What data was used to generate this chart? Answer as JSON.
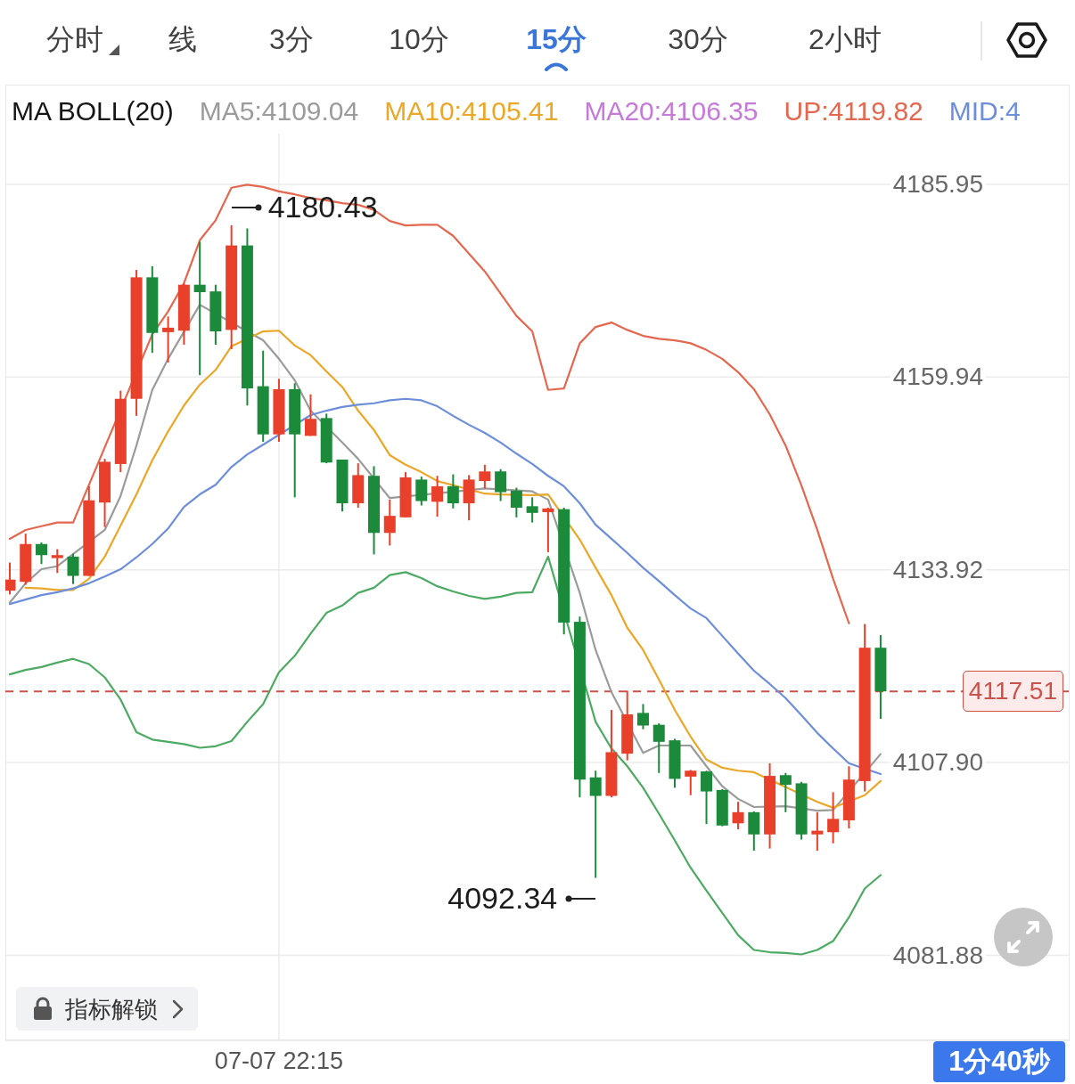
{
  "chart_data": {
    "type": "candlestick",
    "legend_title": "MA BOLL(20)",
    "categories": [
      null,
      null,
      null,
      null,
      null,
      null,
      null,
      null,
      null,
      null,
      null,
      null,
      null,
      null,
      null,
      null,
      null,
      "07-07 22:15",
      null,
      null,
      null,
      null,
      null,
      null,
      null,
      null,
      null,
      null,
      null,
      null,
      null,
      null,
      null,
      null,
      null,
      null,
      null,
      null,
      null,
      null,
      null,
      null,
      null,
      null,
      null,
      null,
      null,
      null,
      null,
      null,
      null,
      null,
      null,
      null,
      null,
      null
    ],
    "ohlc": [
      [
        4131.1,
        4134.9,
        4130.6,
        4132.6
      ],
      [
        4132.3,
        4138.8,
        4131.9,
        4137.4
      ],
      [
        4137.4,
        4137.6,
        4134.7,
        4135.9
      ],
      [
        4135.5,
        4136.7,
        4133.5,
        4135.9
      ],
      [
        4135.7,
        4136.1,
        4132.0,
        4133.1
      ],
      [
        4133.1,
        4145.2,
        4133.1,
        4143.3
      ],
      [
        4143.0,
        4148.9,
        4139.7,
        4148.5
      ],
      [
        4148.2,
        4158.1,
        4147.1,
        4157.0
      ],
      [
        4157.0,
        4174.4,
        4154.7,
        4173.4
      ],
      [
        4173.4,
        4174.9,
        4163.2,
        4165.9
      ],
      [
        4166.0,
        4168.1,
        4161.9,
        4166.6
      ],
      [
        4166.2,
        4172.6,
        4164.3,
        4172.4
      ],
      [
        4172.4,
        4178.2,
        4160.2,
        4171.4
      ],
      [
        4171.5,
        4172.4,
        4164.3,
        4166.1
      ],
      [
        4166.3,
        4180.43,
        4163.7,
        4177.7
      ],
      [
        4177.7,
        4180.0,
        4156.1,
        4158.4
      ],
      [
        4158.7,
        4163.5,
        4151.2,
        4152.2
      ],
      [
        4152.2,
        4159.7,
        4151.2,
        4158.3
      ],
      [
        4158.3,
        4159.1,
        4143.7,
        4152.2
      ],
      [
        4152.0,
        4157.6,
        4152.0,
        4154.3
      ],
      [
        4154.4,
        4155.0,
        4148.3,
        4148.4
      ],
      [
        4148.8,
        4148.8,
        4141.8,
        4142.9
      ],
      [
        4142.9,
        4148.3,
        4142.3,
        4146.7
      ],
      [
        4146.6,
        4147.9,
        4136.0,
        4138.9
      ],
      [
        4138.9,
        4143.4,
        4137.2,
        4141.2
      ],
      [
        4141.0,
        4147.1,
        4141.0,
        4146.4
      ],
      [
        4146.1,
        4146.5,
        4142.6,
        4143.2
      ],
      [
        4143.1,
        4146.6,
        4141.1,
        4145.2
      ],
      [
        4145.2,
        4146.8,
        4142.2,
        4142.9
      ],
      [
        4142.9,
        4146.7,
        4140.6,
        4146.1
      ],
      [
        4145.9,
        4148.1,
        4144.9,
        4147.2
      ],
      [
        4147.2,
        4147.5,
        4143.2,
        4144.4
      ],
      [
        4144.6,
        4145.0,
        4141.0,
        4142.3
      ],
      [
        4142.5,
        4143.7,
        4140.3,
        4141.6
      ],
      [
        4141.7,
        4142.3,
        4136.3,
        4142.2
      ],
      [
        4142.1,
        4142.3,
        4125.2,
        4126.8
      ],
      [
        4126.9,
        4127.6,
        4103.2,
        4105.6
      ],
      [
        4105.9,
        4106.8,
        4092.34,
        4103.4
      ],
      [
        4103.4,
        4115.0,
        4103.2,
        4109.3
      ],
      [
        4109.1,
        4117.6,
        4108.2,
        4114.4
      ],
      [
        4114.6,
        4115.8,
        4112.4,
        4112.9
      ],
      [
        4113.0,
        4113.2,
        4106.5,
        4110.7
      ],
      [
        4110.9,
        4111.1,
        4104.5,
        4105.7
      ],
      [
        4106.0,
        4106.9,
        4103.5,
        4106.8
      ],
      [
        4106.7,
        4106.8,
        4099.6,
        4104.0
      ],
      [
        4104.2,
        4104.3,
        4099.3,
        4099.4
      ],
      [
        4099.7,
        4102.6,
        4098.9,
        4101.2
      ],
      [
        4101.2,
        4101.3,
        4096.0,
        4098.2
      ],
      [
        4098.2,
        4107.8,
        4096.3,
        4106.1
      ],
      [
        4106.2,
        4106.5,
        4101.2,
        4104.9
      ],
      [
        4105.1,
        4105.3,
        4097.5,
        4098.2
      ],
      [
        4098.2,
        4101.2,
        4096.0,
        4098.7
      ],
      [
        4098.5,
        4103.9,
        4097.0,
        4100.3
      ],
      [
        4100.1,
        4107.4,
        4099.0,
        4105.6
      ],
      [
        4105.4,
        4126.6,
        4104.0,
        4123.4
      ],
      [
        4123.4,
        4125.1,
        4113.8,
        4117.51
      ]
    ],
    "colors": [
      "#e8402b",
      "#e8402b",
      "#1b8a3a",
      "#e8402b",
      "#1b8a3a",
      "#e8402b",
      "#e8402b",
      "#e8402b",
      "#e8402b",
      "#1b8a3a",
      "#e8402b",
      "#e8402b",
      "#1b8a3a",
      "#1b8a3a",
      "#e8402b",
      "#1b8a3a",
      "#1b8a3a",
      "#e8402b",
      "#1b8a3a",
      "#e8402b",
      "#1b8a3a",
      "#1b8a3a",
      "#e8402b",
      "#1b8a3a",
      "#e8402b",
      "#e8402b",
      "#1b8a3a",
      "#e8402b",
      "#1b8a3a",
      "#e8402b",
      "#e8402b",
      "#1b8a3a",
      "#1b8a3a",
      "#1b8a3a",
      "#e8402b",
      "#1b8a3a",
      "#1b8a3a",
      "#1b8a3a",
      "#e8402b",
      "#e8402b",
      "#1b8a3a",
      "#1b8a3a",
      "#1b8a3a",
      "#e8402b",
      "#1b8a3a",
      "#1b8a3a",
      "#e8402b",
      "#1b8a3a",
      "#e8402b",
      "#1b8a3a",
      "#1b8a3a",
      "#e8402b",
      "#e8402b",
      "#e8402b",
      "#e8402b",
      "#1b8a3a"
    ],
    "series": [
      {
        "name": "MA5:4109.04",
        "type": "line",
        "color": "#9b9b9b",
        "values": [
          4129.5,
          4132.1,
          4134.0,
          4134.4,
          null,
          null,
          4139.3,
          4143.9,
          4150.7,
          4158.2,
          4162.4,
          null,
          4169.7,
          null,
          null,
          null,
          4164.9,
          4162.4,
          4159.5,
          4155.4,
          null,
          4151.1,
          4148.9,
          null,
          4143.6,
          null,
          null,
          null,
          null,
          null,
          4144.9,
          null,
          null,
          4144.5,
          4143.4,
          null,
          4130.8,
          4123.1,
          4117.4,
          null,
          4109.2,
          4110.2,
          null,
          4110.2,
          4107.4,
          4104.7,
          4103.0,
          4101.9,
          null,
          4102.0,
          null,
          4101.4,
          4101.5,
          null,
          null,
          4109.04
        ]
      },
      {
        "name": "MA10:4105.41",
        "type": "line",
        "color": "#eaa728",
        "values": [
          null,
          4131.5,
          4131.4,
          4131.2,
          4131.2,
          4132.7,
          4135.7,
          4139.9,
          4144.1,
          4148.7,
          4152.6,
          4156.1,
          4158.9,
          4160.9,
          4164.1,
          null,
          4166.1,
          4166.2,
          4164.2,
          4162.9,
          4160.7,
          4158.6,
          4155.4,
          4152.8,
          4149.4,
          4148.1,
          4147.1,
          4145.9,
          null,
          null,
          4144.2,
          4144.1,
          null,
          4144.0,
          4144.1,
          null,
          4138.0,
          4134.2,
          4130.5,
          4126.1,
          4123.1,
          4119.1,
          4115.0,
          4111.4,
          4108.3,
          4107.2,
          4106.8,
          4106.6,
          null,
          null,
          null,
          4102.6,
          4101.8,
          null,
          4103.5,
          4105.41
        ]
      },
      {
        "name": "MA20:4106.35",
        "type": "line",
        "color": "#c57ad9",
        "values": [
          null,
          null,
          null,
          null,
          null,
          null,
          null,
          null,
          null,
          null,
          null,
          null,
          null,
          null,
          null,
          null,
          null,
          null,
          null,
          null,
          null,
          null,
          null,
          null,
          null,
          null,
          null,
          null,
          null,
          null,
          null,
          null,
          null,
          null,
          null,
          null,
          null,
          null,
          null,
          null,
          null,
          null,
          null,
          null,
          null,
          null,
          null,
          null,
          null,
          null,
          null,
          null,
          null,
          null,
          null,
          null
        ]
      },
      {
        "name": "UP:4119.82",
        "type": "line",
        "color": "#e4674f",
        "values": [
          4138.1,
          4139.3,
          4139.8,
          4140.3,
          4140.3,
          null,
          null,
          null,
          null,
          4165.7,
          4168.8,
          4172.6,
          4178.4,
          4181.1,
          4185.5,
          4185.9,
          4185.6,
          4185.0,
          4184.6,
          4184.1,
          4183.8,
          4183.4,
          4183.2,
          4182.5,
          4181.0,
          4180.4,
          4180.5,
          4180.5,
          4179.0,
          4176.6,
          4174.2,
          4171.2,
          4168.2,
          4166.1,
          4158.2,
          4158.4,
          4164.5,
          4166.7,
          4167.3,
          4166.3,
          4165.5,
          4165.1,
          4164.9,
          4164.5,
          4163.6,
          4162.4,
          4160.6,
          4158.3,
          4154.9,
          4150.7,
          4145.3,
          4139.3,
          4132.7,
          4126.7,
          null,
          null
        ]
      },
      {
        "name": "MID:4",
        "type": "line",
        "color": "#6d8ed9",
        "values": [
          4129.3,
          4129.9,
          4130.5,
          4130.9,
          4131.4,
          4132.1,
          4133.0,
          4134.0,
          4135.6,
          4137.4,
          4139.5,
          4142.4,
          4144.1,
          4145.4,
          4147.8,
          4149.5,
          4150.8,
          null,
          null,
          4154.8,
          4155.4,
          4155.9,
          4156.2,
          4156.4,
          4156.8,
          4157.0,
          4156.8,
          4156.0,
          4154.7,
          4153.5,
          4152.4,
          4151.1,
          4149.6,
          4148.2,
          4146.6,
          4145.2,
          4142.9,
          4140.0,
          4138.1,
          4136.2,
          4134.2,
          4132.4,
          4130.5,
          4128.7,
          4127.4,
          4125.0,
          4122.6,
          4120.3,
          4118.5,
          4116.6,
          4114.3,
          4111.9,
          4109.8,
          4107.8,
          null,
          4106.35
        ]
      },
      {
        "type": "line",
        "color": "#4daa63",
        "values": [
          4119.8,
          4120.4,
          4120.8,
          4121.4,
          4121.9,
          4121.2,
          4119.4,
          4116.4,
          4112.0,
          4111.0,
          4110.7,
          4110.4,
          4109.9,
          4110.1,
          4110.8,
          4113.4,
          4115.8,
          4120.1,
          4122.3,
          4125.3,
          4128.1,
          4129.1,
          4130.8,
          4131.5,
          4133.2,
          4133.6,
          4132.8,
          4131.7,
          4131.0,
          4130.4,
          4130.0,
          4130.3,
          4130.8,
          4130.9,
          4135.7,
          null,
          null,
          4113.4,
          4109.8,
          4107.4,
          4104.5,
          4101.0,
          4097.4,
          4093.7,
          4090.6,
          4087.6,
          4084.6,
          4082.6,
          4082.3,
          4082.2,
          4082.0,
          4082.6,
          4083.8,
          4087.0,
          4090.9,
          4092.7
        ]
      }
    ],
    "ylim": [
      4070.4,
      4192.8
    ],
    "yticks": [
      4081.88,
      {
        "value": 4107.9,
        "label": "4107.90"
      },
      4133.92,
      4159.94,
      4185.95
    ],
    "grid": true,
    "legend": "top",
    "ref_lines": [
      {
        "axis": "y",
        "value": 4117.51,
        "label": "4117.51",
        "color": "#c9534b",
        "line_style": "dashed"
      }
    ],
    "annotations": [
      "分时",
      "线",
      "3分",
      "10分",
      "15分",
      "30分",
      "2小时",
      "4180.43",
      "4092.34",
      "指标解锁",
      "1分40秒"
    ]
  }
}
